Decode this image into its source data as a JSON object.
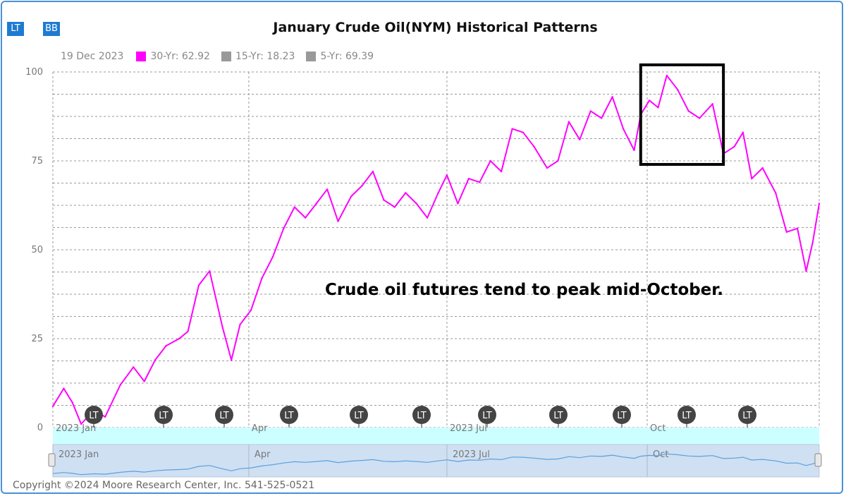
{
  "header": {
    "buttons": [
      {
        "label": "LT"
      },
      {
        "label": "BB"
      }
    ],
    "title": "January Crude Oil(NYM) Historical Patterns"
  },
  "legend": {
    "date": "19 Dec 2023",
    "items": [
      {
        "label": "30-Yr: 62.92",
        "color": "#ff00ff"
      },
      {
        "label": "15-Yr: 18.23",
        "color": "#999999"
      },
      {
        "label": "5-Yr: 69.39",
        "color": "#999999"
      }
    ]
  },
  "annotation": "Crude oil futures tend to peak mid-October.",
  "copyright": "Copyright ©2024 Moore Research Center, Inc. 541-525-0521",
  "markers": [
    "LT",
    "LT",
    "LT",
    "LT",
    "LT",
    "LT",
    "LT",
    "LT",
    "LT",
    "LT",
    "LT"
  ],
  "navigator_labels": [
    "2023 Jan",
    "Apr",
    "2023 Jul",
    "Oct"
  ],
  "chart_data": {
    "type": "line",
    "series": [
      {
        "name": "30-Yr: 62.92",
        "color": "#ff00ff",
        "x": [
          "2023-01-01",
          "2023-01-06",
          "2023-01-10",
          "2023-01-14",
          "2023-01-20",
          "2023-01-25",
          "2023-02-01",
          "2023-02-07",
          "2023-02-12",
          "2023-02-17",
          "2023-02-22",
          "2023-02-28",
          "2023-03-04",
          "2023-03-09",
          "2023-03-14",
          "2023-03-20",
          "2023-03-24",
          "2023-03-28",
          "2023-04-02",
          "2023-04-07",
          "2023-04-12",
          "2023-04-17",
          "2023-04-22",
          "2023-04-27",
          "2023-05-02",
          "2023-05-07",
          "2023-05-12",
          "2023-05-18",
          "2023-05-23",
          "2023-05-28",
          "2023-06-02",
          "2023-06-07",
          "2023-06-12",
          "2023-06-17",
          "2023-06-22",
          "2023-06-27",
          "2023-07-01",
          "2023-07-06",
          "2023-07-11",
          "2023-07-16",
          "2023-07-21",
          "2023-07-26",
          "2023-07-31",
          "2023-08-05",
          "2023-08-10",
          "2023-08-16",
          "2023-08-21",
          "2023-08-26",
          "2023-08-31",
          "2023-09-05",
          "2023-09-10",
          "2023-09-15",
          "2023-09-20",
          "2023-09-25",
          "2023-09-28",
          "2023-10-02",
          "2023-10-06",
          "2023-10-10",
          "2023-10-15",
          "2023-10-20",
          "2023-10-25",
          "2023-10-31",
          "2023-11-05",
          "2023-11-10",
          "2023-11-14",
          "2023-11-18",
          "2023-11-23",
          "2023-11-29",
          "2023-12-04",
          "2023-12-09",
          "2023-12-13",
          "2023-12-16",
          "2023-12-19"
        ],
        "values": [
          6,
          11,
          7,
          1,
          5,
          3,
          12,
          17,
          13,
          19,
          23,
          25,
          27,
          40,
          44,
          28,
          19,
          29,
          33,
          42,
          48,
          56,
          62,
          59,
          63,
          67,
          58,
          65,
          68,
          72,
          64,
          62,
          66,
          63,
          59,
          66,
          71,
          63,
          70,
          69,
          75,
          72,
          84,
          83,
          79,
          73,
          75,
          86,
          81,
          89,
          87,
          93,
          84,
          78,
          88,
          92,
          90,
          99,
          95,
          89,
          87,
          91,
          77,
          79,
          83,
          70,
          73,
          66,
          55,
          56,
          44,
          52,
          63
        ]
      }
    ],
    "xlabel": "",
    "ylabel": "",
    "ylim": [
      0,
      100
    ],
    "xlim": [
      "2023-01-01",
      "2023-12-19"
    ],
    "y_ticks": [
      0,
      25,
      50,
      75,
      100
    ],
    "x_tick_labels": [
      "2023 Jan",
      "Apr",
      "2023 Jul",
      "Oct"
    ],
    "x_tick_dates": [
      "2023-01-01",
      "2023-04-01",
      "2023-07-01",
      "2023-10-01"
    ],
    "grid": true,
    "highlight_box": {
      "x": [
        "2023-09-28",
        "2023-11-05"
      ],
      "y": [
        74,
        102
      ]
    }
  }
}
